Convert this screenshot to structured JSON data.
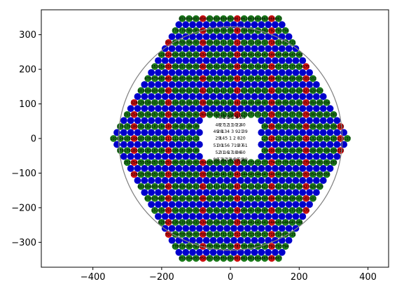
{
  "chart_data": {
    "type": "scatter",
    "title": "",
    "xlabel": "",
    "ylabel": "",
    "xlim": [
      -550,
      460
    ],
    "ylim": [
      -372,
      372
    ],
    "grid": false,
    "x_ticks": [
      -400,
      -200,
      0,
      200,
      400
    ],
    "y_ticks": [
      -300,
      -200,
      -100,
      0,
      100,
      200,
      300
    ],
    "x_tick_labels": [
      "−400",
      "−200",
      "0",
      "200",
      "400"
    ],
    "y_tick_labels": [
      "−300",
      "−200",
      "−100",
      "0",
      "100",
      "200",
      "300"
    ],
    "layout": {
      "pattern": "hexagonal close-packed grid",
      "pitch": 20,
      "hexagon_circumradius": 340,
      "marker_radius": 10
    },
    "boundary_circle": {
      "center": [
        0,
        0
      ],
      "radius": 325,
      "color": "#808080"
    },
    "cell_colors": {
      "blue": "#0000cc",
      "green": "#1b7a1b",
      "red": "#cc1111",
      "center_background": "#ffffff"
    },
    "center_labels": [
      [
        "74",
        "47",
        "26",
        "25",
        "23",
        "41",
        "63"
      ],
      [
        "48",
        "27",
        "12",
        "11",
        "10",
        "22",
        "40"
      ],
      [
        "49",
        "28",
        "13",
        "4",
        "3",
        "9",
        "21",
        "39"
      ],
      [
        "29",
        "14",
        "5",
        "1",
        "2",
        "8",
        "20"
      ],
      [
        "51",
        "30",
        "15",
        "6",
        "7",
        "19",
        "37",
        "61"
      ],
      [
        "52",
        "31",
        "16",
        "17",
        "18",
        "36",
        "60"
      ],
      [
        "80",
        "53",
        "32",
        "33",
        "34",
        "35",
        "59",
        "89"
      ]
    ]
  }
}
